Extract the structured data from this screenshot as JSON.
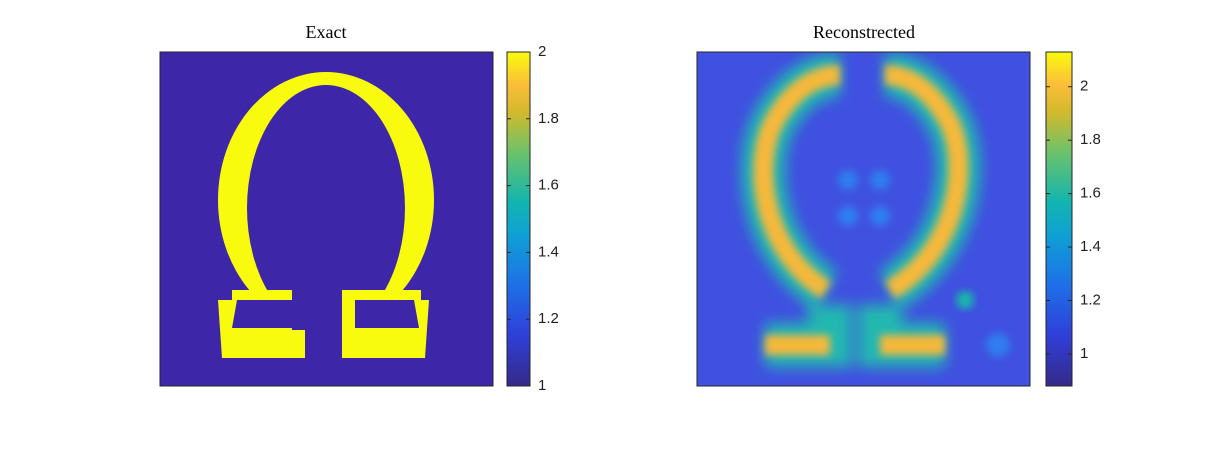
{
  "chart_data": [
    {
      "type": "image",
      "title": "Exact",
      "clim": [
        1,
        2
      ],
      "cticks": [
        1,
        1.2,
        1.4,
        1.6,
        1.8,
        2
      ]
    },
    {
      "type": "image",
      "title": "Reconstrected",
      "clim": [
        0.88,
        2.13
      ],
      "cticks": [
        1,
        1.2,
        1.4,
        1.6,
        1.8,
        2
      ]
    }
  ]
}
